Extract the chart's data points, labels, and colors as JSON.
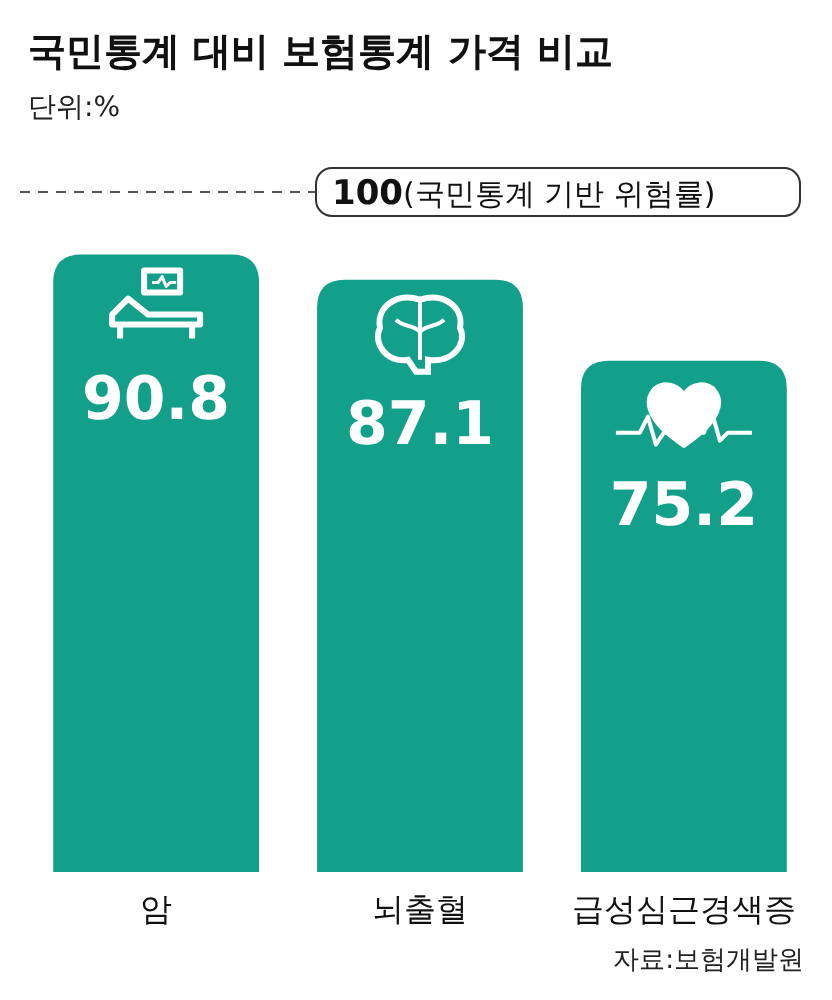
{
  "chart_data": {
    "type": "bar",
    "title": "국민통계 대비 보험통계 가격 비교",
    "subtitle": "단위:%",
    "categories": [
      "암",
      "뇌출혈",
      "급성심근경색증"
    ],
    "values": [
      90.8,
      87.1,
      75.2
    ],
    "color": "#12a08b",
    "data_labels": true,
    "ref_lines": [
      {
        "axis": "y",
        "value": 100,
        "label": "100(국민통계 기반 위험률)",
        "line_style": "dashed",
        "color": "#555555"
      }
    ],
    "annotations": [
      "자료:보험개발원"
    ]
  }
}
